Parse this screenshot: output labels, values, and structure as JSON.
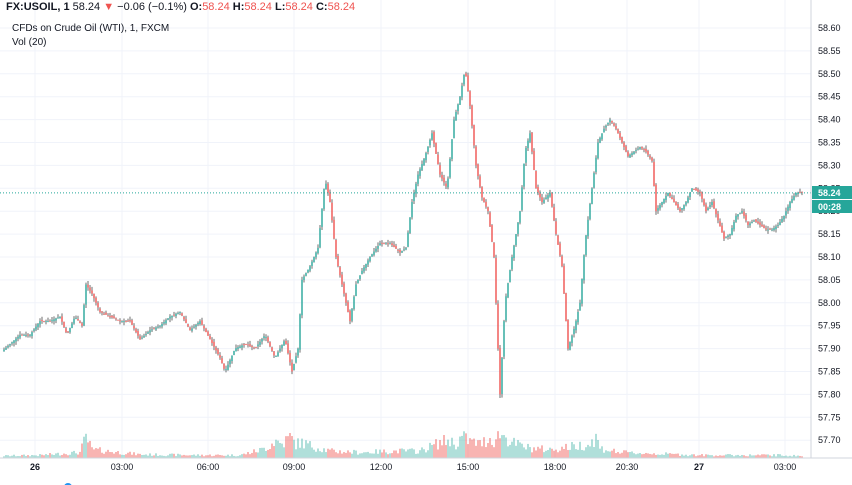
{
  "header": {
    "symbol": "FX:USOIL, 1",
    "last": "58.24",
    "arrow": "▼",
    "change": "−0.06 (−0.1%)",
    "o_label": "O:",
    "o_value": "58.24",
    "h_label": "H:",
    "h_value": "58.24",
    "l_label": "L:",
    "l_value": "58.24",
    "c_label": "C:",
    "c_value": "58.24"
  },
  "series_title": "CFDs on Crude Oil (WTI), 1, FXCM",
  "volume_label": "Vol (20)",
  "price_tag": {
    "price": "58.24",
    "countdown": "00:28"
  },
  "colors": {
    "up": "#4db6ac",
    "down": "#ef5350",
    "tag": "#26a69a",
    "line": "#26a69a"
  },
  "chart_data": {
    "type": "line",
    "subtype": "candlestick-intraday",
    "y_ticks": [
      "58.60",
      "58.55",
      "58.50",
      "58.45",
      "58.40",
      "58.35",
      "58.30",
      "58.25",
      "58.20",
      "58.15",
      "58.10",
      "58.05",
      "58.00",
      "57.95",
      "57.90",
      "57.85",
      "57.80",
      "57.75",
      "57.70"
    ],
    "ylim": [
      57.68,
      58.62
    ],
    "x_ticks": [
      {
        "label": "26",
        "bold": true
      },
      {
        "label": "03:00",
        "bold": false
      },
      {
        "label": "06:00",
        "bold": false
      },
      {
        "label": "09:00",
        "bold": false
      },
      {
        "label": "12:00",
        "bold": false
      },
      {
        "label": "15:00",
        "bold": false
      },
      {
        "label": "18:00",
        "bold": false
      },
      {
        "label": "20:30",
        "bold": false
      },
      {
        "label": "27",
        "bold": true
      },
      {
        "label": "03:00",
        "bold": false
      }
    ],
    "price_path": [
      [
        0,
        57.89
      ],
      [
        10,
        57.91
      ],
      [
        20,
        57.93
      ],
      [
        30,
        57.93
      ],
      [
        40,
        57.96
      ],
      [
        50,
        57.96
      ],
      [
        60,
        57.97
      ],
      [
        67,
        57.93
      ],
      [
        75,
        57.97
      ],
      [
        82,
        57.95
      ],
      [
        86,
        58.04
      ],
      [
        92,
        58.02
      ],
      [
        100,
        57.98
      ],
      [
        110,
        57.97
      ],
      [
        120,
        57.96
      ],
      [
        130,
        57.96
      ],
      [
        140,
        57.92
      ],
      [
        150,
        57.94
      ],
      [
        160,
        57.95
      ],
      [
        170,
        57.97
      ],
      [
        180,
        57.98
      ],
      [
        190,
        57.94
      ],
      [
        200,
        57.96
      ],
      [
        210,
        57.92
      ],
      [
        220,
        57.88
      ],
      [
        225,
        57.85
      ],
      [
        235,
        57.9
      ],
      [
        245,
        57.91
      ],
      [
        255,
        57.9
      ],
      [
        265,
        57.93
      ],
      [
        275,
        57.88
      ],
      [
        285,
        57.92
      ],
      [
        292,
        57.85
      ],
      [
        298,
        57.9
      ],
      [
        302,
        58.05
      ],
      [
        310,
        58.08
      ],
      [
        318,
        58.12
      ],
      [
        325,
        58.27
      ],
      [
        330,
        58.22
      ],
      [
        336,
        58.1
      ],
      [
        342,
        58.04
      ],
      [
        350,
        57.96
      ],
      [
        356,
        58.04
      ],
      [
        362,
        58.07
      ],
      [
        370,
        58.1
      ],
      [
        380,
        58.13
      ],
      [
        390,
        58.13
      ],
      [
        400,
        58.11
      ],
      [
        406,
        58.12
      ],
      [
        412,
        58.22
      ],
      [
        418,
        58.28
      ],
      [
        425,
        58.32
      ],
      [
        432,
        58.37
      ],
      [
        440,
        58.28
      ],
      [
        447,
        58.25
      ],
      [
        454,
        58.4
      ],
      [
        460,
        58.45
      ],
      [
        465,
        58.51
      ],
      [
        470,
        58.43
      ],
      [
        476,
        58.3
      ],
      [
        482,
        58.23
      ],
      [
        488,
        58.2
      ],
      [
        494,
        58.1
      ],
      [
        500,
        57.8
      ],
      [
        505,
        58.0
      ],
      [
        512,
        58.1
      ],
      [
        520,
        58.2
      ],
      [
        525,
        58.33
      ],
      [
        530,
        58.37
      ],
      [
        536,
        58.25
      ],
      [
        542,
        58.22
      ],
      [
        550,
        58.24
      ],
      [
        556,
        58.15
      ],
      [
        562,
        58.08
      ],
      [
        568,
        57.9
      ],
      [
        575,
        57.95
      ],
      [
        580,
        58.0
      ],
      [
        585,
        58.13
      ],
      [
        592,
        58.25
      ],
      [
        598,
        58.35
      ],
      [
        604,
        58.38
      ],
      [
        610,
        58.4
      ],
      [
        616,
        58.38
      ],
      [
        622,
        58.35
      ],
      [
        628,
        58.32
      ],
      [
        634,
        58.33
      ],
      [
        640,
        58.34
      ],
      [
        646,
        58.33
      ],
      [
        652,
        58.31
      ],
      [
        656,
        58.2
      ],
      [
        662,
        58.22
      ],
      [
        668,
        58.24
      ],
      [
        674,
        58.22
      ],
      [
        680,
        58.2
      ],
      [
        686,
        58.22
      ],
      [
        692,
        58.25
      ],
      [
        700,
        58.24
      ],
      [
        706,
        58.2
      ],
      [
        712,
        58.22
      ],
      [
        718,
        58.18
      ],
      [
        724,
        58.14
      ],
      [
        730,
        58.15
      ],
      [
        736,
        58.19
      ],
      [
        742,
        58.2
      ],
      [
        748,
        58.17
      ],
      [
        754,
        58.18
      ],
      [
        760,
        58.17
      ],
      [
        766,
        58.16
      ],
      [
        772,
        58.16
      ],
      [
        778,
        58.17
      ],
      [
        784,
        58.19
      ],
      [
        790,
        58.22
      ],
      [
        796,
        58.24
      ],
      [
        803,
        58.24
      ]
    ],
    "volume_envelope": [
      [
        0,
        3
      ],
      [
        40,
        4
      ],
      [
        80,
        8
      ],
      [
        86,
        30
      ],
      [
        92,
        12
      ],
      [
        140,
        5
      ],
      [
        200,
        4
      ],
      [
        240,
        4
      ],
      [
        262,
        12
      ],
      [
        270,
        18
      ],
      [
        275,
        25
      ],
      [
        282,
        20
      ],
      [
        290,
        30
      ],
      [
        296,
        20
      ],
      [
        302,
        22
      ],
      [
        310,
        18
      ],
      [
        330,
        10
      ],
      [
        360,
        8
      ],
      [
        400,
        10
      ],
      [
        420,
        10
      ],
      [
        440,
        22
      ],
      [
        450,
        26
      ],
      [
        455,
        18
      ],
      [
        462,
        30
      ],
      [
        470,
        24
      ],
      [
        480,
        20
      ],
      [
        490,
        28
      ],
      [
        495,
        24
      ],
      [
        500,
        36
      ],
      [
        505,
        30
      ],
      [
        515,
        20
      ],
      [
        530,
        14
      ],
      [
        550,
        12
      ],
      [
        570,
        16
      ],
      [
        590,
        20
      ],
      [
        596,
        30
      ],
      [
        600,
        14
      ],
      [
        620,
        8
      ],
      [
        660,
        6
      ],
      [
        700,
        4
      ],
      [
        740,
        4
      ],
      [
        780,
        4
      ],
      [
        800,
        3
      ]
    ]
  }
}
